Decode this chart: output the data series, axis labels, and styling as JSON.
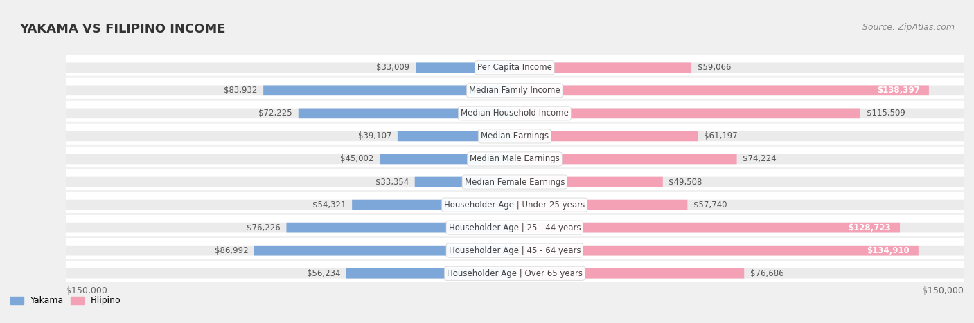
{
  "title": "YAKAMA VS FILIPINO INCOME",
  "source": "Source: ZipAtlas.com",
  "categories": [
    "Per Capita Income",
    "Median Family Income",
    "Median Household Income",
    "Median Earnings",
    "Median Male Earnings",
    "Median Female Earnings",
    "Householder Age | Under 25 years",
    "Householder Age | 25 - 44 years",
    "Householder Age | 45 - 64 years",
    "Householder Age | Over 65 years"
  ],
  "yakama_values": [
    33009,
    83932,
    72225,
    39107,
    45002,
    33354,
    54321,
    76226,
    86992,
    56234
  ],
  "filipino_values": [
    59066,
    138397,
    115509,
    61197,
    74224,
    49508,
    57740,
    128723,
    134910,
    76686
  ],
  "yakama_color": "#7da7d9",
  "filipino_color": "#f4a0b5",
  "yakama_label": "Yakama",
  "filipino_label": "Filipino",
  "x_max": 150000,
  "axis_label_left": "$150,000",
  "axis_label_right": "$150,000",
  "background_color": "#f0f0f0",
  "bar_bg_color": "#e8e8e8",
  "row_bg_color": "#f5f5f5",
  "title_fontsize": 13,
  "source_fontsize": 9,
  "bar_label_fontsize": 8.5,
  "category_fontsize": 8.5
}
